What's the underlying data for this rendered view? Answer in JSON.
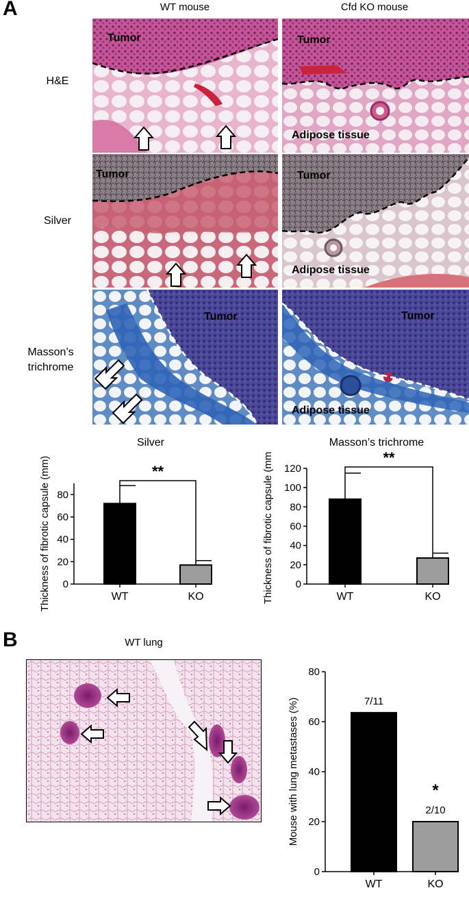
{
  "panel_a": {
    "letter": "A",
    "column_headers": [
      "WT mouse",
      "Cfd KO mouse"
    ],
    "rows": [
      {
        "label": "H&E",
        "left_labels": [
          "Tumor"
        ],
        "right_labels": [
          "Tumor",
          "Adipose tissue"
        ]
      },
      {
        "label": "Silver",
        "left_labels": [
          "Tumor"
        ],
        "right_labels": [
          "Tumor",
          "Adipose tissue"
        ]
      },
      {
        "label": "Masson’s trichrome",
        "left_labels": [
          "Tumor"
        ],
        "right_labels": [
          "Tumor",
          "Adipose tissue"
        ]
      }
    ]
  },
  "panel_b": {
    "letter": "B",
    "image_title": "WT lung"
  },
  "colors": {
    "he_pink": "#e7a9c7",
    "silver_bg": "#d9c9cb",
    "masson_blue": "#4b58a8",
    "bar_wt": "#000000",
    "bar_ko": "#9d9d9d"
  },
  "chart_data": [
    {
      "type": "bar",
      "title": "Silver",
      "categories": [
        "WT",
        "KO"
      ],
      "values": [
        72,
        17
      ],
      "errors": [
        16,
        4
      ],
      "ylabel": "Thickness of fibrotic capsule (mm)",
      "ylim": [
        0,
        90
      ],
      "yticks": [
        "0",
        "20",
        "40",
        "60",
        "80"
      ],
      "significance": "**"
    },
    {
      "type": "bar",
      "title": "Masson’s trichrome",
      "categories": [
        "WT",
        "KO"
      ],
      "values": [
        88,
        27
      ],
      "errors": [
        27,
        5
      ],
      "ylabel": "Thickness of fibrotic capsule (mm)",
      "ylim": [
        0,
        120
      ],
      "yticks": [
        "0",
        "20",
        "40",
        "60",
        "80",
        "100",
        "120"
      ],
      "significance": "**"
    },
    {
      "type": "bar",
      "title": "",
      "categories": [
        "WT",
        "KO"
      ],
      "values": [
        63.6,
        20
      ],
      "bar_labels": [
        "7/11",
        "2/10"
      ],
      "ylabel": "Mouse with lung metastases (%)",
      "ylim": [
        0,
        80
      ],
      "yticks": [
        "0",
        "20",
        "40",
        "60",
        "80"
      ],
      "significance": "*"
    }
  ]
}
